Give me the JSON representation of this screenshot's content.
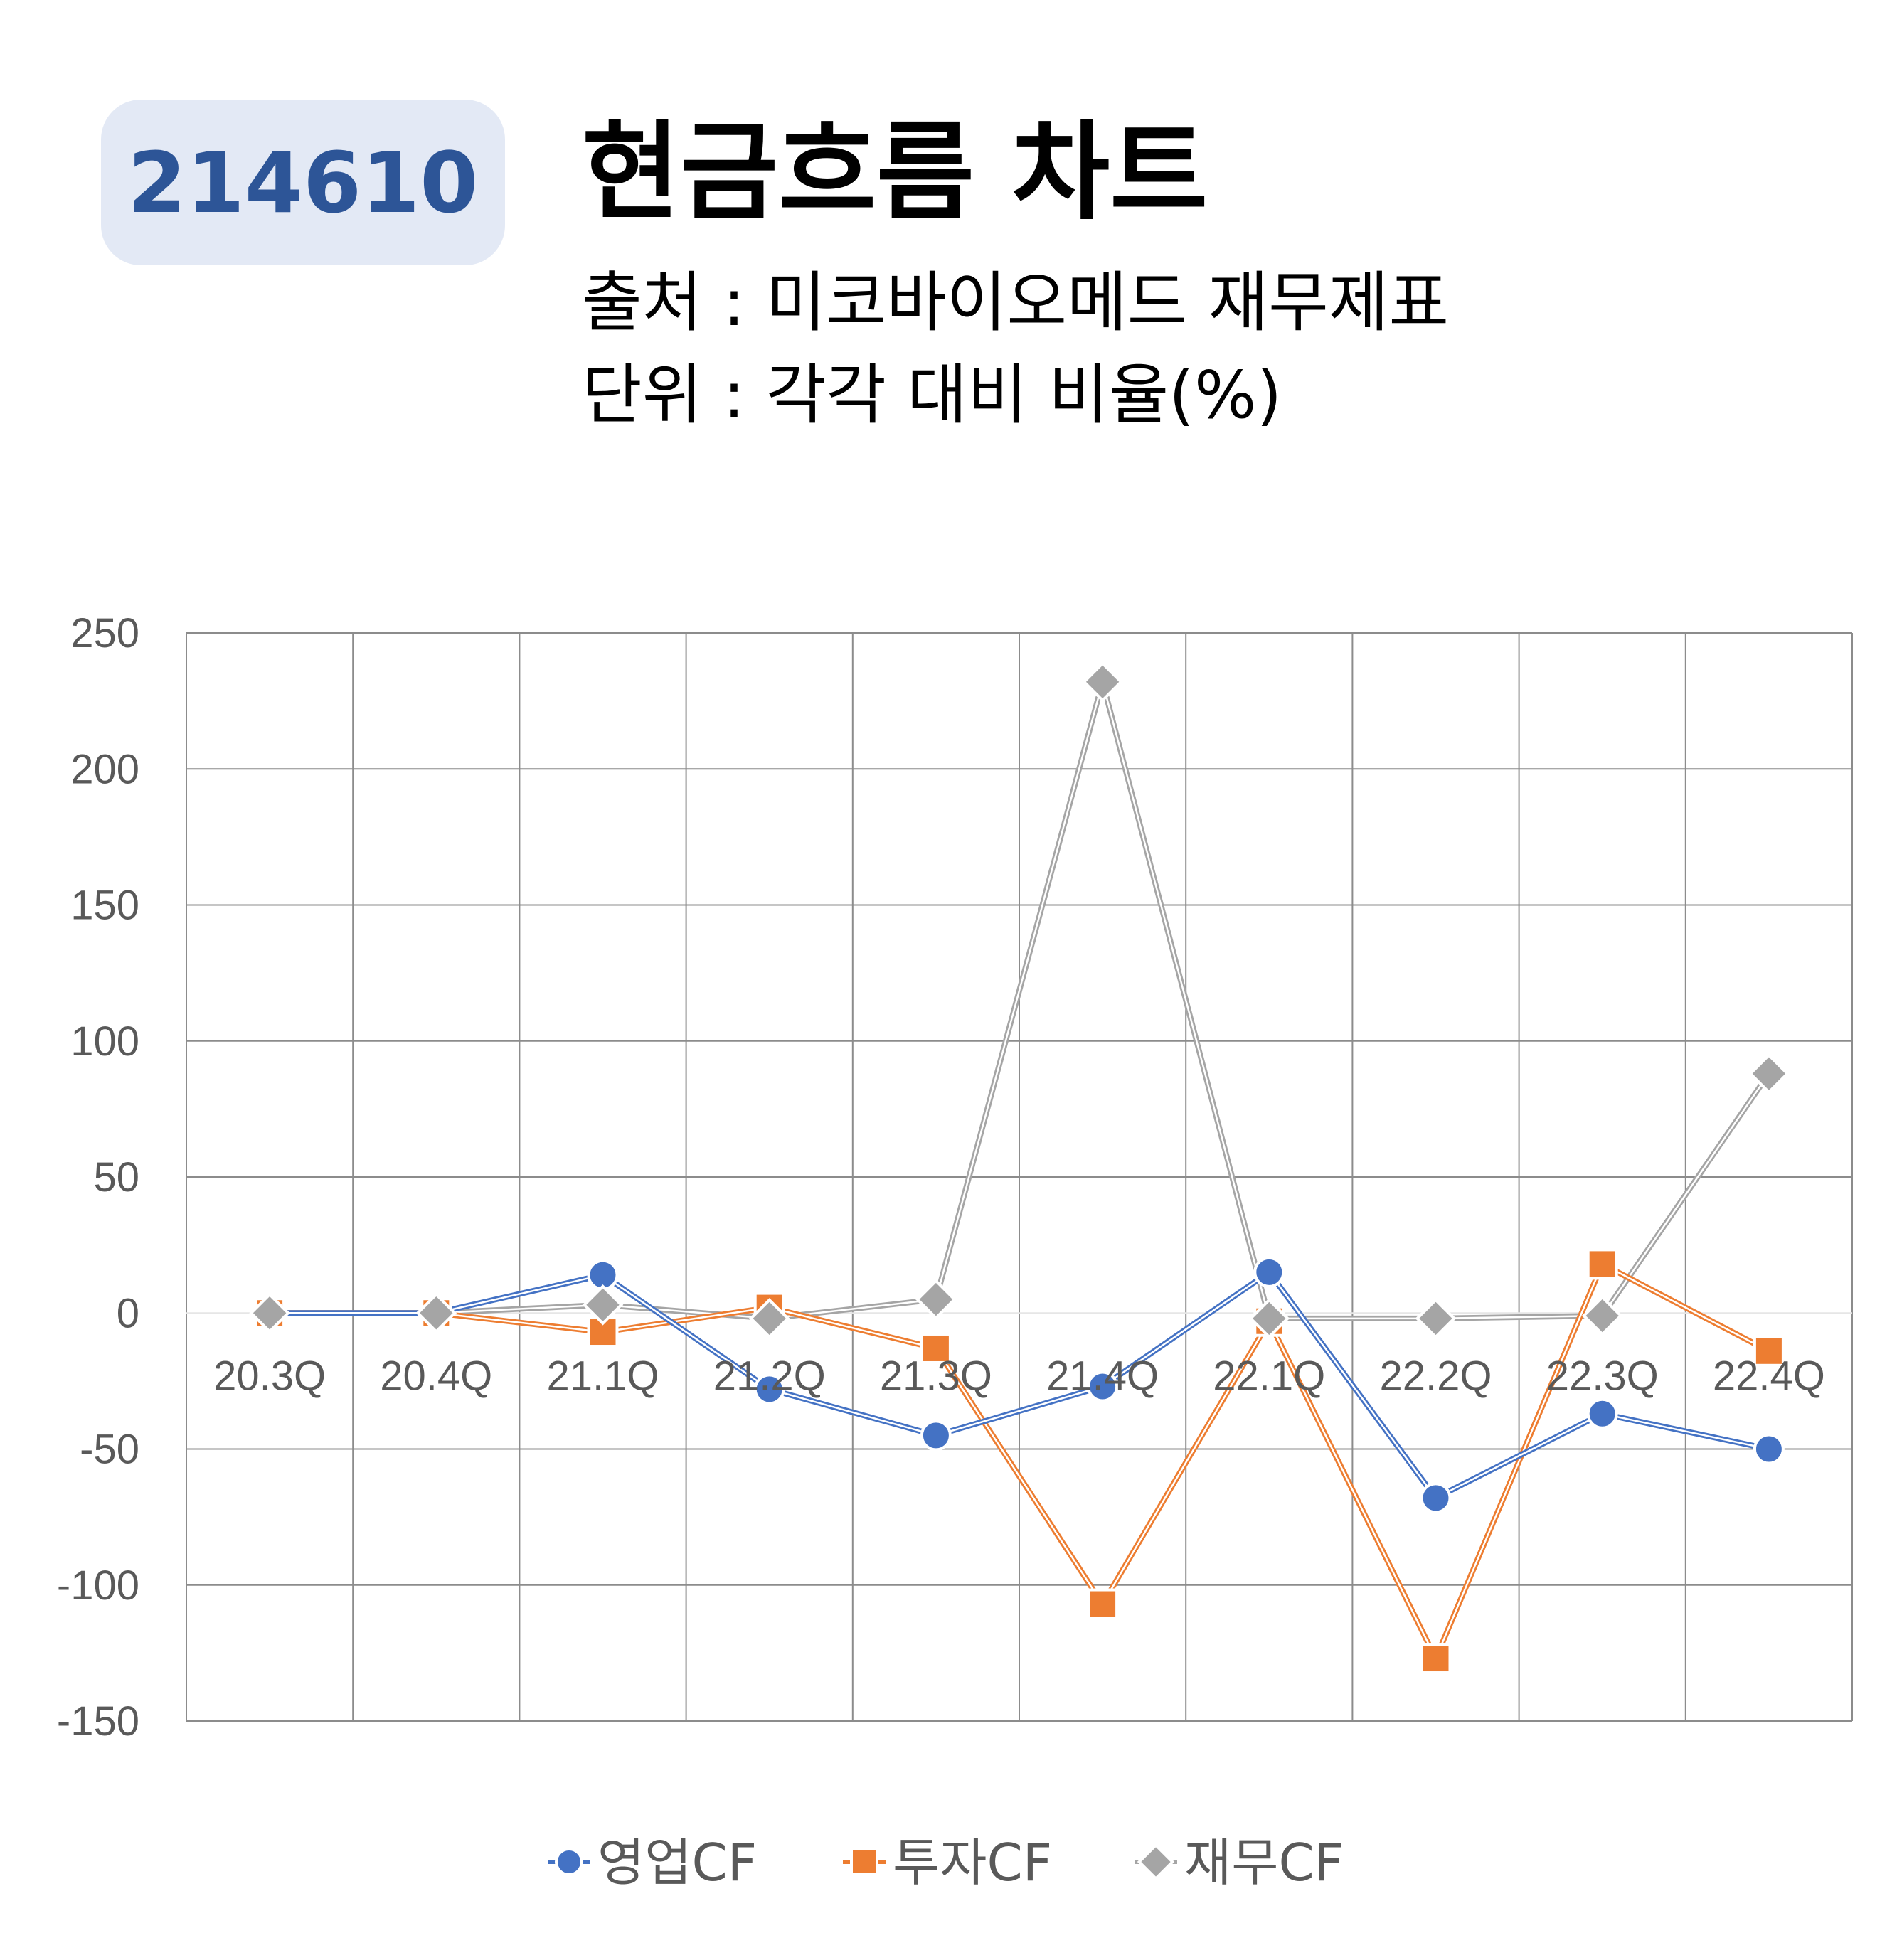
{
  "header": {
    "code": "214610",
    "title": "현금흐름 차트",
    "source": "출처 : 미코바이오메드 재무제표",
    "unit": "단위 : 각각 대비 비율(%)"
  },
  "colors": {
    "badge_bg": "#e3e9f5",
    "badge_text": "#2d5597",
    "grid": "#8c8c8c",
    "axis_text": "#595959"
  },
  "chart_data": {
    "type": "line",
    "categories": [
      "20.3Q",
      "20.4Q",
      "21.1Q",
      "21.2Q",
      "21.3Q",
      "21.4Q",
      "22.1Q",
      "22.2Q",
      "22.3Q",
      "22.4Q"
    ],
    "ylim": [
      -150,
      250
    ],
    "yticks": [
      250,
      200,
      150,
      100,
      50,
      0,
      -50,
      -100,
      -150
    ],
    "grid": true,
    "legend_position": "bottom",
    "series": [
      {
        "name": "영업CF",
        "color": "#4472c4",
        "marker": "circle",
        "values": [
          0,
          0,
          14,
          -28,
          -45,
          -27,
          15,
          -68,
          -37,
          -50
        ]
      },
      {
        "name": "투자CF",
        "color": "#ed7d31",
        "marker": "square",
        "values": [
          0,
          0,
          -7,
          2,
          -13,
          -107,
          -3,
          -127,
          18,
          -14
        ]
      },
      {
        "name": "재무CF",
        "color": "#a5a5a5",
        "marker": "diamond",
        "values": [
          0,
          0,
          3,
          -2,
          5,
          232,
          -2,
          -2,
          -1,
          88
        ]
      }
    ]
  }
}
